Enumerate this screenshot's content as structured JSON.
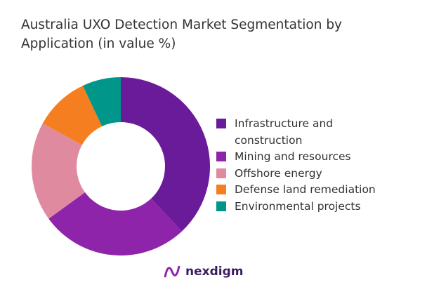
{
  "chart_data": {
    "type": "pie",
    "donut": true,
    "title": "Australia UXO Detection Market Segmentation by Application (in value %)",
    "categories": [
      "Infrastructure and construction",
      "Mining and resources",
      "Offshore energy",
      "Defense land remediation",
      "Environmental projects"
    ],
    "values": [
      38,
      27,
      18,
      10,
      7
    ],
    "colors": [
      "#6a1b9a",
      "#8e24aa",
      "#e08aa0",
      "#f57f20",
      "#00968a"
    ],
    "legend": "right"
  },
  "logo": {
    "text": "nexdigm"
  }
}
